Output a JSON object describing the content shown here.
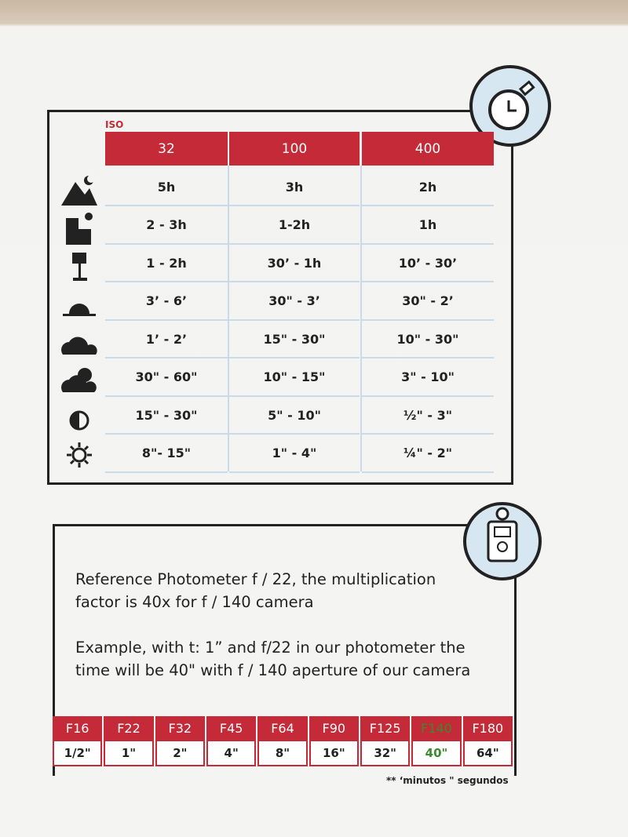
{
  "iso_table": {
    "label": "ISO",
    "headers": [
      "32",
      "100",
      "400"
    ],
    "rows": [
      [
        "5h",
        "3h",
        "2h"
      ],
      [
        "2 - 3h",
        "1-2h",
        "1h"
      ],
      [
        "1 - 2h",
        "30’ - 1h",
        "10’ - 30’"
      ],
      [
        "3’ - 6’",
        "30\" - 3’",
        "30\" - 2’"
      ],
      [
        "1’ - 2’",
        "15\" - 30\"",
        "10\" - 30\""
      ],
      [
        "30\" - 60\"",
        "10\" - 15\"",
        "3\" - 10\""
      ],
      [
        "15\" - 30\"",
        "5\" - 10\"",
        "½\" - 3\""
      ],
      [
        "8\"- 15\"",
        "1\" - 4\"",
        "¼\" - 2\""
      ]
    ]
  },
  "note": {
    "paragraphs": [
      [
        "Reference Photometer f / 22, the multiplication",
        "factor is 40x  for  f / 140 camera"
      ],
      [
        "Example,  with t: 1”  and f/22 in  our photometer  the",
        "time will be 40\"  with f / 140 aperture of our camera"
      ]
    ]
  },
  "f_table": {
    "stops": [
      "F16",
      "F22",
      "F32",
      "F45",
      "F64",
      "F90",
      "F125",
      "F140",
      "F180"
    ],
    "times": [
      "1/2\"",
      "1\"",
      "2\"",
      "4\"",
      "8\"",
      "16\"",
      "32\"",
      "40\"",
      "64\""
    ]
  },
  "footnote": "** ‘minutos \" segundos"
}
